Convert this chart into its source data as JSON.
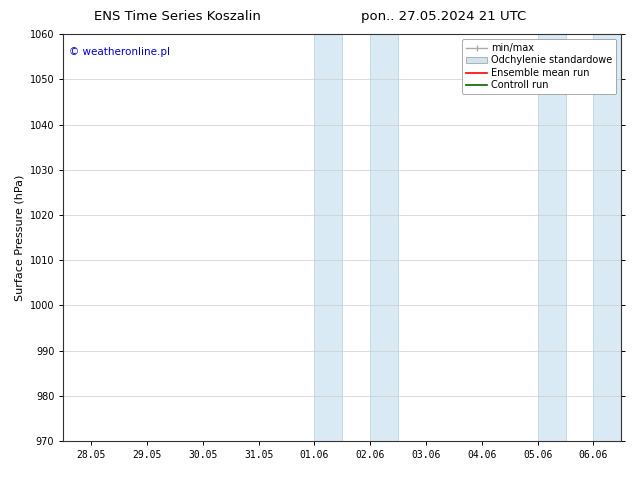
{
  "title_left": "ENS Time Series Koszalin",
  "title_right": "pon.. 27.05.2024 21 UTC",
  "ylabel": "Surface Pressure (hPa)",
  "ylim": [
    970,
    1060
  ],
  "yticks": [
    970,
    980,
    990,
    1000,
    1010,
    1020,
    1030,
    1040,
    1050,
    1060
  ],
  "xtick_labels": [
    "28.05",
    "29.05",
    "30.05",
    "31.05",
    "01.06",
    "02.06",
    "03.06",
    "04.06",
    "05.06",
    "06.06"
  ],
  "shaded_regions": [
    {
      "start": 4.0,
      "end": 4.5
    },
    {
      "start": 5.0,
      "end": 5.5
    },
    {
      "start": 8.0,
      "end": 8.5
    },
    {
      "start": 9.0,
      "end": 9.5
    }
  ],
  "shade_color": "#daeaf5",
  "shade_edge_color": "#b0cfe0",
  "watermark": "© weatheronline.pl",
  "watermark_color": "#0000cc",
  "legend_items": [
    {
      "label": "min/max",
      "color": "#aaaaaa",
      "lw": 1.0
    },
    {
      "label": "Odchylenie standardowe",
      "color": "#d0e4f0",
      "lw": 5
    },
    {
      "label": "Ensemble mean run",
      "color": "#ff0000",
      "lw": 1.2
    },
    {
      "label": "Controll run",
      "color": "#006400",
      "lw": 1.2
    }
  ],
  "background_color": "#ffffff",
  "grid_color": "#cccccc",
  "title_fontsize": 9.5,
  "tick_fontsize": 7,
  "ylabel_fontsize": 8,
  "legend_fontsize": 7,
  "watermark_fontsize": 7.5,
  "xmin": -0.5,
  "xmax": 9.5
}
